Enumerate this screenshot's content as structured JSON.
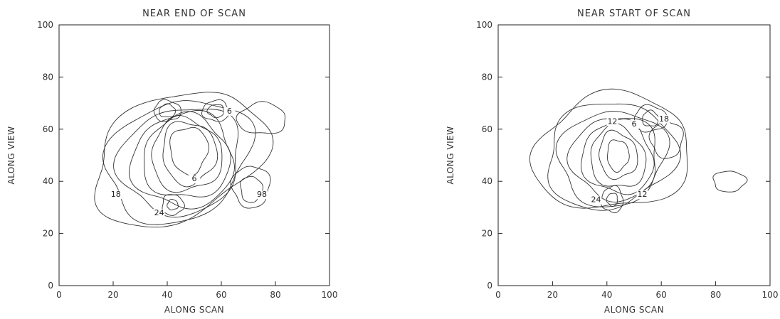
{
  "chart_data": [
    {
      "type": "contour",
      "title": "NEAR END OF SCAN",
      "xlabel": "ALONG SCAN",
      "ylabel": "ALONG VIEW",
      "xlim": [
        0,
        100
      ],
      "ylim": [
        0,
        100
      ],
      "xticks": [
        0,
        20,
        40,
        60,
        80,
        100
      ],
      "yticks": [
        0,
        20,
        40,
        60,
        80,
        100
      ],
      "xtick_labels": [
        "0",
        "20",
        "40",
        "60",
        "80",
        "100"
      ],
      "ytick_labels": [
        "0",
        "20",
        "40",
        "60",
        "80",
        "100"
      ],
      "grid": false,
      "contour_labels": [
        {
          "text": "6",
          "x": 50,
          "y": 40
        },
        {
          "text": "18",
          "x": 21,
          "y": 34
        },
        {
          "text": "24",
          "x": 37,
          "y": 27
        },
        {
          "text": "6",
          "x": 63,
          "y": 66
        },
        {
          "text": "98",
          "x": 75,
          "y": 34
        }
      ]
    },
    {
      "type": "contour",
      "title": "NEAR START OF SCAN",
      "xlabel": "ALONG SCAN",
      "ylabel": "ALONG VIEW",
      "xlim": [
        0,
        100
      ],
      "ylim": [
        0,
        100
      ],
      "xticks": [
        0,
        20,
        40,
        60,
        80,
        100
      ],
      "yticks": [
        0,
        20,
        40,
        60,
        80,
        100
      ],
      "xtick_labels": [
        "0",
        "20",
        "40",
        "60",
        "80",
        "100"
      ],
      "ytick_labels": [
        "0",
        "20",
        "40",
        "60",
        "80",
        "100"
      ],
      "grid": false,
      "contour_labels": [
        {
          "text": "12",
          "x": 42,
          "y": 62
        },
        {
          "text": "6",
          "x": 50,
          "y": 61
        },
        {
          "text": "18",
          "x": 61,
          "y": 63
        },
        {
          "text": "12",
          "x": 53,
          "y": 34
        },
        {
          "text": "24",
          "x": 36,
          "y": 32
        }
      ]
    }
  ]
}
